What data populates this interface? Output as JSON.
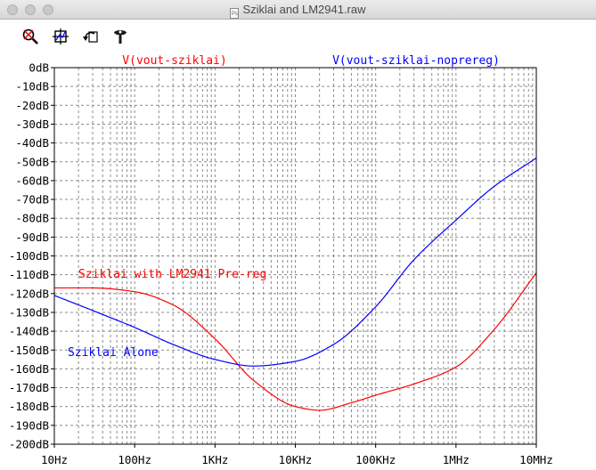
{
  "window": {
    "title": "Sziklai and LM2941.raw",
    "doc_icon_label": "Ps"
  },
  "toolbar": {
    "icons": [
      "zoom-icon",
      "autorange-icon",
      "undo-icon",
      "cursor-probe-icon"
    ]
  },
  "colors": {
    "red": "#ff0000",
    "blue": "#0000ff",
    "grid": "#8c8c8c"
  },
  "chart_data": {
    "type": "line",
    "x_scale": "log",
    "xlim": [
      10,
      10000000
    ],
    "ylim": [
      -200,
      0
    ],
    "x_ticks": [
      10,
      100,
      1000,
      10000,
      100000,
      1000000,
      10000000
    ],
    "x_tick_labels": [
      "10Hz",
      "100Hz",
      "1KHz",
      "10KHz",
      "100KHz",
      "1MHz",
      "10MHz"
    ],
    "y_ticks": [
      0,
      -10,
      -20,
      -30,
      -40,
      -50,
      -60,
      -70,
      -80,
      -90,
      -100,
      -110,
      -120,
      -130,
      -140,
      -150,
      -160,
      -170,
      -180,
      -190,
      -200
    ],
    "y_tick_labels": [
      "0dB",
      "-10dB",
      "-20dB",
      "-30dB",
      "-40dB",
      "-50dB",
      "-60dB",
      "-70dB",
      "-80dB",
      "-90dB",
      "-100dB",
      "-110dB",
      "-120dB",
      "-130dB",
      "-140dB",
      "-150dB",
      "-160dB",
      "-170dB",
      "-180dB",
      "-190dB",
      "-200dB"
    ],
    "grid": "dashed log grid",
    "series": [
      {
        "name": "V(vout-sziklai)",
        "color": "#ff0000",
        "x": [
          10,
          30,
          100,
          300,
          1000,
          3000,
          10000,
          20000,
          50000,
          100000,
          300000,
          1000000,
          3000000,
          10000000
        ],
        "y": [
          -117,
          -117,
          -119,
          -126,
          -144,
          -166,
          -180,
          -182,
          -178,
          -174,
          -168,
          -159,
          -139,
          -109
        ]
      },
      {
        "name": "V(vout-sziklai-noprereg)",
        "color": "#0000ff",
        "x": [
          10,
          30,
          100,
          300,
          1000,
          3000,
          10000,
          30000,
          100000,
          300000,
          1000000,
          3000000,
          10000000
        ],
        "y": [
          -121,
          -129,
          -138,
          -147,
          -155,
          -158.5,
          -156,
          -147,
          -127,
          -102,
          -81,
          -63,
          -48
        ]
      }
    ],
    "annotations": [
      {
        "text": "Sziklai with LM2941 Pre-reg",
        "color": "#ff0000"
      },
      {
        "text": "Sziklai Alone",
        "color": "#0000ff"
      }
    ]
  }
}
